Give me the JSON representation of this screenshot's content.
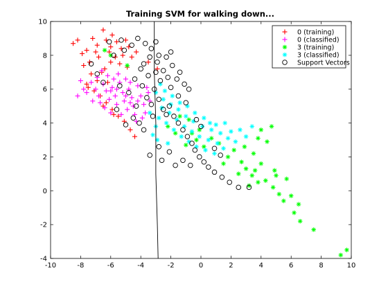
{
  "chart_data": {
    "type": "scatter",
    "title": "Training SVM for walking down...",
    "xlabel": "",
    "ylabel": "",
    "xlim": [
      -10,
      10
    ],
    "ylim": [
      -4,
      10
    ],
    "x_ticks": [
      "-10",
      "-8",
      "-6",
      "-4",
      "-2",
      "0",
      "2",
      "4",
      "6",
      "8",
      "10"
    ],
    "y_ticks": [
      "-4",
      "-2",
      "0",
      "2",
      "4",
      "6",
      "8",
      "10"
    ],
    "legend_position": "top-right",
    "grid": false,
    "series": [
      {
        "name": "0 (training)",
        "marker": "plus",
        "color": "#ff0000",
        "points": [
          [
            -8.5,
            8.7
          ],
          [
            -8.2,
            8.9
          ],
          [
            -7.6,
            8.3
          ],
          [
            -7.2,
            9.0
          ],
          [
            -6.9,
            8.6
          ],
          [
            -6.5,
            9.5
          ],
          [
            -6.3,
            8.9
          ],
          [
            -6.1,
            8.2
          ],
          [
            -5.9,
            9.2
          ],
          [
            -5.6,
            8.8
          ],
          [
            -5.3,
            8.4
          ],
          [
            -5.0,
            8.9
          ],
          [
            -4.8,
            8.5
          ],
          [
            -4.6,
            7.9
          ],
          [
            -7.9,
            8.1
          ],
          [
            -7.4,
            7.6
          ],
          [
            -6.8,
            7.9
          ],
          [
            -6.4,
            7.2
          ],
          [
            -6.0,
            7.6
          ],
          [
            -5.7,
            7.9
          ],
          [
            -5.4,
            7.5
          ],
          [
            -7.8,
            7.4
          ],
          [
            -7.3,
            6.9
          ],
          [
            -6.9,
            6.5
          ],
          [
            -6.6,
            7.0
          ],
          [
            -6.2,
            6.4
          ],
          [
            -7.5,
            6.1
          ],
          [
            -7.1,
            5.9
          ],
          [
            -6.7,
            5.6
          ],
          [
            -6.3,
            5.2
          ],
          [
            -5.9,
            4.8
          ],
          [
            -5.5,
            4.4
          ],
          [
            -5.1,
            4.1
          ],
          [
            -4.7,
            3.6
          ],
          [
            -4.4,
            3.2
          ],
          [
            -5.8,
            4.5
          ],
          [
            -6.5,
            5.0
          ],
          [
            -7.6,
            6.3
          ],
          [
            -4.3,
            8.2
          ],
          [
            -3.5,
            7.6
          ],
          [
            -2.9,
            7.2
          ],
          [
            -6.0,
            8.5
          ],
          [
            -5.2,
            8.0
          ],
          [
            -4.9,
            7.3
          ],
          [
            -7.0,
            8.2
          ]
        ]
      },
      {
        "name": "0 (classified)",
        "marker": "plus",
        "color": "#ff00ff",
        "points": [
          [
            -8.2,
            5.6
          ],
          [
            -7.8,
            6.0
          ],
          [
            -7.3,
            6.4
          ],
          [
            -7.0,
            6.0
          ],
          [
            -6.8,
            5.6
          ],
          [
            -6.5,
            6.3
          ],
          [
            -6.3,
            5.9
          ],
          [
            -6.1,
            5.4
          ],
          [
            -5.9,
            6.1
          ],
          [
            -5.7,
            5.6
          ],
          [
            -5.6,
            5.1
          ],
          [
            -5.4,
            6.4
          ],
          [
            -5.2,
            5.8
          ],
          [
            -5.1,
            5.3
          ],
          [
            -4.9,
            4.8
          ],
          [
            -4.8,
            6.0
          ],
          [
            -4.6,
            5.5
          ],
          [
            -4.5,
            5.0
          ],
          [
            -4.4,
            4.5
          ],
          [
            -4.2,
            6.2
          ],
          [
            -4.0,
            5.6
          ],
          [
            -3.8,
            5.1
          ],
          [
            -3.7,
            4.6
          ],
          [
            -3.5,
            5.8
          ],
          [
            -3.4,
            5.3
          ],
          [
            -6.9,
            6.7
          ],
          [
            -6.6,
            7.1
          ],
          [
            -6.2,
            6.8
          ],
          [
            -5.8,
            6.6
          ],
          [
            -5.5,
            6.9
          ],
          [
            -5.0,
            6.6
          ],
          [
            -4.7,
            6.4
          ],
          [
            -7.2,
            5.3
          ],
          [
            -6.7,
            5.2
          ],
          [
            -6.4,
            4.9
          ],
          [
            -6.0,
            4.6
          ],
          [
            -5.3,
            4.5
          ],
          [
            -7.6,
            5.8
          ],
          [
            -8.0,
            6.5
          ],
          [
            -4.3,
            4.1
          ],
          [
            -3.9,
            4.3
          ],
          [
            -5.6,
            6.0
          ],
          [
            -6.0,
            5.9
          ],
          [
            -5.0,
            5.6
          ],
          [
            -4.7,
            5.2
          ],
          [
            -4.2,
            5.3
          ],
          [
            -3.6,
            6.1
          ]
        ]
      },
      {
        "name": "3 (training)",
        "marker": "asterisk",
        "color": "#00ff00",
        "points": [
          [
            9.3,
            -3.8
          ],
          [
            9.7,
            -3.5
          ],
          [
            7.5,
            -2.3
          ],
          [
            6.6,
            -1.8
          ],
          [
            6.2,
            -1.3
          ],
          [
            6.5,
            -0.8
          ],
          [
            5.5,
            -0.6
          ],
          [
            5.2,
            -0.2
          ],
          [
            4.8,
            0.2
          ],
          [
            5.7,
            0.7
          ],
          [
            4.3,
            0.6
          ],
          [
            4.9,
            1.2
          ],
          [
            3.8,
            0.5
          ],
          [
            3.4,
            0.9
          ],
          [
            3.0,
            1.3
          ],
          [
            2.7,
            1.7
          ],
          [
            3.5,
            2.2
          ],
          [
            4.0,
            1.6
          ],
          [
            4.4,
            2.9
          ],
          [
            3.8,
            3.1
          ],
          [
            4.7,
            3.8
          ],
          [
            4.0,
            3.6
          ],
          [
            2.2,
            2.4
          ],
          [
            1.8,
            2.0
          ],
          [
            1.2,
            2.8
          ],
          [
            0.7,
            3.1
          ],
          [
            0.2,
            2.6
          ],
          [
            -0.3,
            3.0
          ],
          [
            -1.0,
            2.7
          ],
          [
            -0.6,
            3.4
          ],
          [
            -1.7,
            3.4
          ],
          [
            -2.2,
            3.8
          ],
          [
            -1.4,
            4.4
          ],
          [
            -0.8,
            4.2
          ],
          [
            -6.4,
            8.3
          ],
          [
            -6.0,
            8.0
          ],
          [
            -4.9,
            7.4
          ],
          [
            2.5,
            1.0
          ],
          [
            3.2,
            0.3
          ],
          [
            1.5,
            1.6
          ],
          [
            -0.1,
            3.6
          ],
          [
            2.9,
            2.6
          ],
          [
            5.0,
            0.9
          ],
          [
            6.0,
            -0.3
          ],
          [
            3.6,
            1.2
          ]
        ]
      },
      {
        "name": "3 (classified)",
        "marker": "asterisk",
        "color": "#00ffff",
        "points": [
          [
            -3.2,
            3.3
          ],
          [
            -3.0,
            3.8
          ],
          [
            -2.8,
            4.3
          ],
          [
            -2.6,
            4.9
          ],
          [
            -2.5,
            5.4
          ],
          [
            -2.3,
            4.0
          ],
          [
            -2.1,
            4.6
          ],
          [
            -2.0,
            5.1
          ],
          [
            -1.8,
            3.6
          ],
          [
            -1.6,
            4.2
          ],
          [
            -1.5,
            4.8
          ],
          [
            -1.3,
            3.2
          ],
          [
            -1.1,
            3.8
          ],
          [
            -1.0,
            4.4
          ],
          [
            -0.8,
            2.9
          ],
          [
            -0.6,
            3.5
          ],
          [
            -0.5,
            4.1
          ],
          [
            -0.3,
            2.6
          ],
          [
            -0.1,
            3.2
          ],
          [
            0.1,
            3.8
          ],
          [
            0.3,
            2.4
          ],
          [
            0.5,
            3.0
          ],
          [
            0.7,
            3.6
          ],
          [
            0.9,
            2.2
          ],
          [
            1.1,
            2.8
          ],
          [
            1.3,
            3.4
          ],
          [
            1.5,
            2.5
          ],
          [
            1.8,
            3.1
          ],
          [
            2.0,
            3.5
          ],
          [
            2.3,
            2.9
          ],
          [
            2.6,
            3.6
          ],
          [
            3.0,
            3.2
          ],
          [
            3.4,
            3.8
          ],
          [
            -3.0,
            5.8
          ],
          [
            -2.7,
            6.3
          ],
          [
            -2.4,
            5.9
          ],
          [
            -3.4,
            4.6
          ],
          [
            -2.9,
            3.0
          ],
          [
            -2.2,
            2.8
          ],
          [
            -1.9,
            5.6
          ],
          [
            -1.4,
            5.2
          ],
          [
            -0.9,
            5.0
          ],
          [
            -0.4,
            4.6
          ],
          [
            0.2,
            4.3
          ],
          [
            0.6,
            4.0
          ],
          [
            1.0,
            3.9
          ],
          [
            1.6,
            4.0
          ]
        ]
      },
      {
        "name": "Support Vectors",
        "marker": "circle",
        "color": "#000000",
        "points": [
          [
            -4.2,
            9.0
          ],
          [
            -3.7,
            8.7
          ],
          [
            -3.3,
            8.4
          ],
          [
            -2.8,
            8.0
          ],
          [
            -2.3,
            7.9
          ],
          [
            -1.9,
            7.4
          ],
          [
            -1.4,
            7.0
          ],
          [
            -1.1,
            6.3
          ],
          [
            -2.9,
            7.6
          ],
          [
            -2.5,
            7.1
          ],
          [
            -3.4,
            7.9
          ],
          [
            -4.6,
            8.6
          ],
          [
            -5.1,
            8.3
          ],
          [
            -5.8,
            8.0
          ],
          [
            -6.1,
            8.8
          ],
          [
            -5.3,
            8.9
          ],
          [
            -3.8,
            7.5
          ],
          [
            -3.0,
            7.0
          ],
          [
            -2.2,
            6.7
          ],
          [
            -3.5,
            6.8
          ],
          [
            -4.0,
            7.2
          ],
          [
            -3.9,
            6.2
          ],
          [
            -3.6,
            5.5
          ],
          [
            -3.3,
            5.1
          ],
          [
            -3.1,
            6.0
          ],
          [
            -2.8,
            5.4
          ],
          [
            -2.5,
            4.8
          ],
          [
            -2.3,
            4.5
          ],
          [
            -2.1,
            5.0
          ],
          [
            -1.8,
            4.4
          ],
          [
            -1.5,
            4.0
          ],
          [
            -1.2,
            3.6
          ],
          [
            -0.9,
            3.2
          ],
          [
            -0.6,
            2.8
          ],
          [
            -0.4,
            2.4
          ],
          [
            -0.1,
            2.0
          ],
          [
            0.2,
            1.7
          ],
          [
            0.5,
            1.4
          ],
          [
            0.9,
            1.1
          ],
          [
            1.4,
            0.8
          ],
          [
            1.9,
            0.5
          ],
          [
            2.5,
            0.2
          ],
          [
            3.2,
            0.2
          ],
          [
            -0.7,
            1.5
          ],
          [
            -1.2,
            1.8
          ],
          [
            -1.7,
            1.5
          ],
          [
            -2.1,
            2.3
          ],
          [
            -2.8,
            2.6
          ],
          [
            -3.4,
            2.1
          ],
          [
            -3.8,
            3.6
          ],
          [
            -4.1,
            4.0
          ],
          [
            -4.5,
            4.3
          ],
          [
            -5.0,
            3.9
          ],
          [
            -5.6,
            4.8
          ],
          [
            -6.5,
            6.4
          ],
          [
            -6.9,
            6.9
          ],
          [
            -7.3,
            7.5
          ],
          [
            -2.6,
            1.8
          ],
          [
            0.9,
            2.5
          ],
          [
            1.3,
            2.1
          ],
          [
            0.0,
            3.8
          ],
          [
            -0.3,
            4.2
          ],
          [
            -1.0,
            5.2
          ],
          [
            -1.5,
            5.6
          ],
          [
            -2.0,
            6.1
          ],
          [
            -2.7,
            6.5
          ],
          [
            -3.2,
            4.4
          ],
          [
            -4.3,
            5.0
          ],
          [
            -4.8,
            5.8
          ],
          [
            -5.4,
            6.2
          ],
          [
            -3.0,
            8.8
          ],
          [
            -2.0,
            8.2
          ],
          [
            -1.6,
            6.6
          ],
          [
            -0.8,
            6.0
          ],
          [
            -4.4,
            6.6
          ]
        ]
      }
    ],
    "decision_boundary": {
      "color": "#000000",
      "x": [
        -3.1,
        -3.1,
        -3.0,
        -3.0,
        -2.9,
        -2.85
      ],
      "y": [
        10.0,
        7.0,
        4.0,
        1.0,
        -2.0,
        -4.0
      ]
    }
  }
}
